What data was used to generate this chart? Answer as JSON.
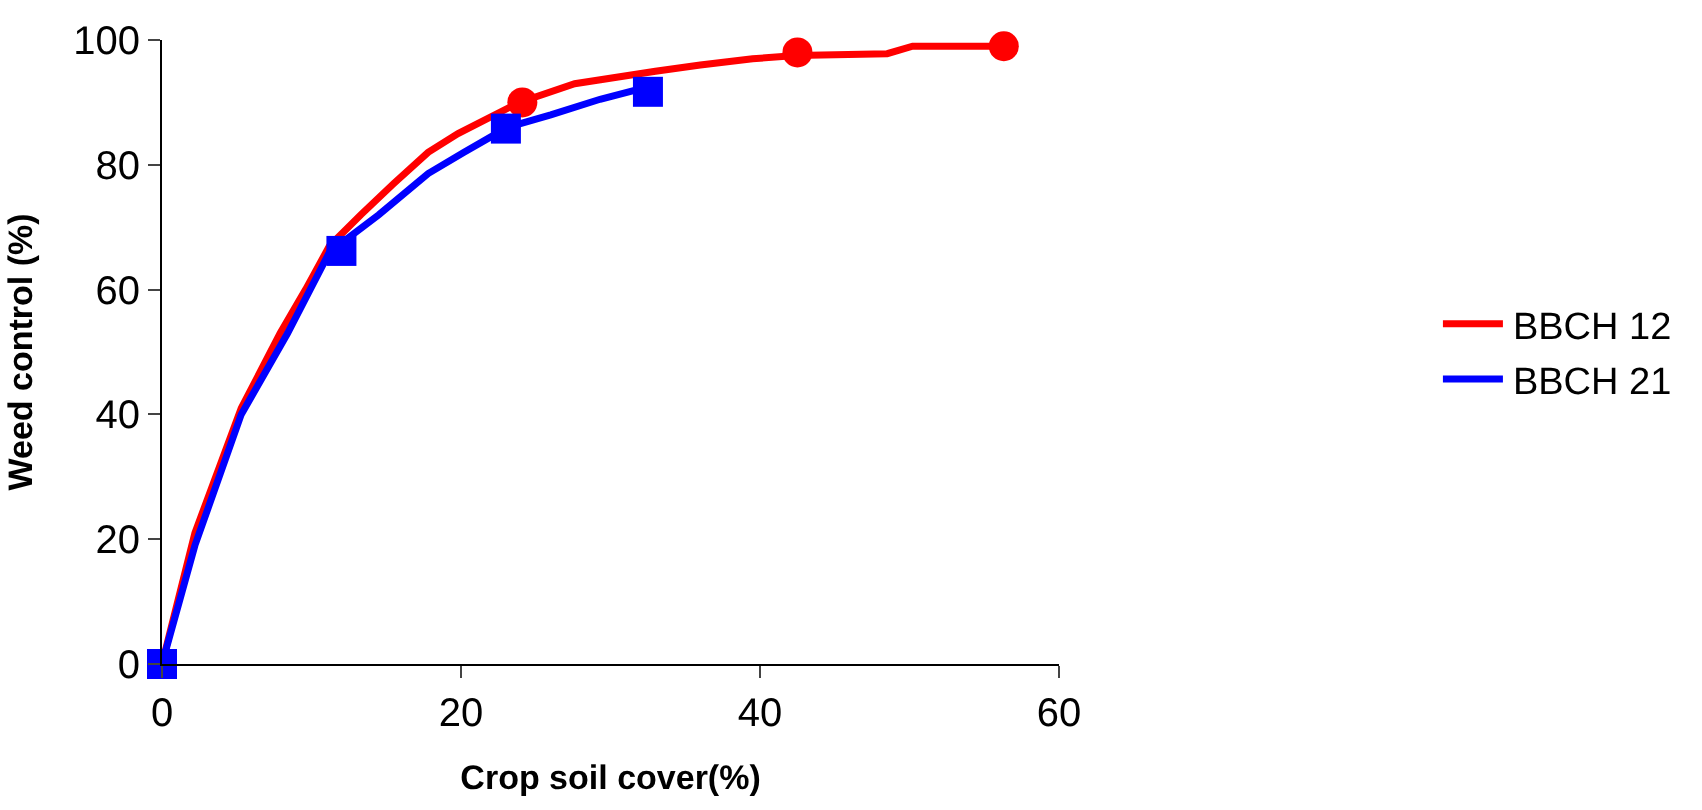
{
  "chart_data": {
    "type": "line",
    "xlabel": "Crop soil cover(%)",
    "ylabel": "Weed control (%)",
    "xlim": [
      0,
      60
    ],
    "xticks": [
      0,
      20,
      40,
      60
    ],
    "ylim": [
      0,
      100
    ],
    "yticks": [
      0,
      20,
      40,
      60,
      80,
      100
    ],
    "grid": false,
    "legend": "right",
    "marker": "none",
    "line_style": "solid",
    "series": [
      {
        "name": "BBCH 12",
        "color": "#ff0000",
        "x": [
          0,
          2.2,
          5.3,
          7.9,
          9.6,
          11.2,
          13.3,
          15.5,
          17.8,
          19.8,
          23.9,
          27.6,
          33,
          36,
          39.5,
          42.4,
          48.5,
          50.2,
          56.3
        ],
        "values": [
          0,
          21,
          41,
          53,
          60,
          67,
          72,
          77,
          82,
          85,
          90,
          93,
          95,
          96,
          97,
          97.5,
          97.8,
          99,
          99
        ]
      },
      {
        "name": "BBCH 21",
        "color": "#0000ff",
        "x": [
          0,
          2.2,
          5.3,
          8.4,
          11.2,
          14.5,
          17.8,
          20.2,
          23.1,
          26,
          29.3,
          32.5
        ],
        "values": [
          0,
          19,
          40,
          53,
          66,
          72,
          78.6,
          82,
          86,
          88,
          90.5,
          92.5
        ]
      },
      {
        "type": "scatter",
        "marker": "circle",
        "color": "#ff0000",
        "x": [
          24.1,
          42.5,
          56.3
        ],
        "values": [
          90,
          98,
          99
        ]
      },
      {
        "type": "scatter",
        "marker": "square",
        "color": "#0000ff",
        "x": [
          0,
          12,
          23,
          32.5
        ],
        "values": [
          0,
          66.2,
          85.8,
          91.7
        ]
      }
    ]
  }
}
